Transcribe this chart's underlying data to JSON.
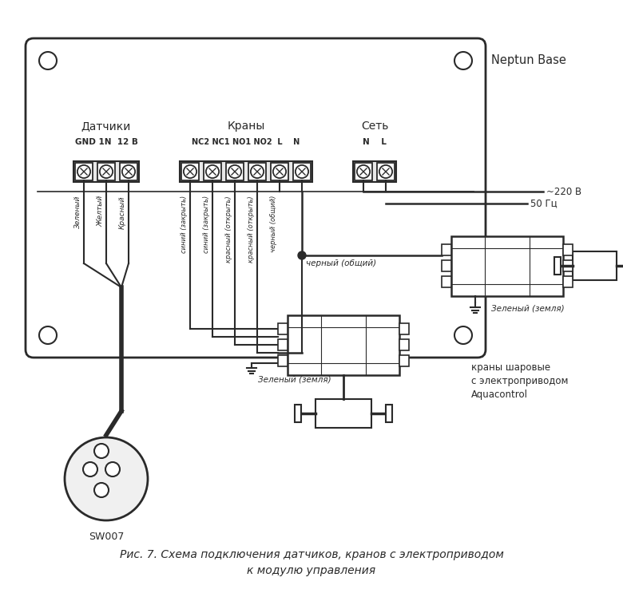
{
  "title_line1": "Рис. 7. Схема подключения датчиков, кранов с электроприводом",
  "title_line2": "к модулю управления",
  "neptun_label": "Neptun Base",
  "bg_color": "#ffffff",
  "line_color": "#2a2a2a",
  "sensor_label": "Датчики",
  "sensor_sub": "GND 1N  12 В",
  "crane_label": "Краны",
  "crane_sub": "NC2 NC1 NO1 NO2  L    N",
  "net_label": "Сеть",
  "net_sub": "N    L",
  "sw007_label": "SW007",
  "crane_text1": "краны шаровые",
  "crane_text2": "с электроприводом",
  "crane_text3": "Aquacontrol",
  "v220_label": "~220 В",
  "hz50_label": "50 Гц",
  "black_common": "черный (общий)",
  "green_earth1": "Зеленый (земля)",
  "green_earth2": "Зеленый (земля)",
  "wire_labels_sensors": [
    "Зеленый",
    "Желтый",
    "Красный"
  ],
  "wire_labels_cranes": [
    "синий (закрыть)",
    "синий (закрыть)",
    "красный (открыть)",
    "красный (открыть)",
    "черный (общий)"
  ]
}
